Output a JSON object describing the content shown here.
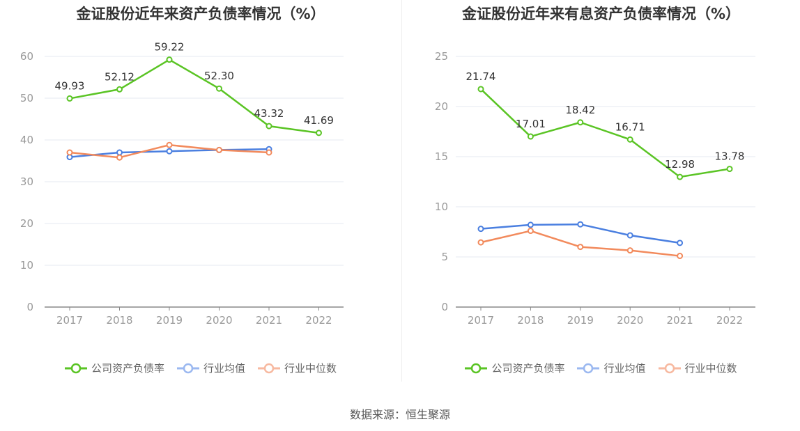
{
  "source_text": "数据来源：恒生聚源",
  "colors": {
    "company": "#5ac424",
    "industry_avg": "#4a7fe0",
    "industry_median": "#f28a5c",
    "grid": "#e6e8f2",
    "axis": "#888888"
  },
  "chart_data": [
    {
      "type": "line",
      "title": "金证股份近年来资产负债率情况（%）",
      "categories": [
        "2017",
        "2018",
        "2019",
        "2020",
        "2021",
        "2022"
      ],
      "ylim": [
        0,
        60
      ],
      "yticks": [
        0,
        10,
        20,
        30,
        40,
        50,
        60
      ],
      "grid": true,
      "legend_position": "bottom",
      "series": [
        {
          "name": "公司资产负债率",
          "color_key": "company",
          "values": [
            49.93,
            52.12,
            59.22,
            52.3,
            43.32,
            41.69
          ],
          "labels": [
            "49.93",
            "52.12",
            "59.22",
            "52.30",
            "43.32",
            "41.69"
          ]
        },
        {
          "name": "行业均值",
          "color_key": "industry_avg",
          "values": [
            35.9,
            37.0,
            37.3,
            37.6,
            37.8,
            null
          ]
        },
        {
          "name": "行业中位数",
          "color_key": "industry_median",
          "values": [
            37.0,
            35.8,
            38.8,
            37.6,
            37.0,
            null
          ]
        }
      ]
    },
    {
      "type": "line",
      "title": "金证股份近年来有息资产负债率情况（%）",
      "categories": [
        "2017",
        "2018",
        "2019",
        "2020",
        "2021",
        "2022"
      ],
      "ylim": [
        0,
        25
      ],
      "yticks": [
        0,
        5,
        10,
        15,
        20,
        25
      ],
      "grid": true,
      "legend_position": "bottom",
      "series": [
        {
          "name": "公司资产负债率",
          "color_key": "company",
          "values": [
            21.74,
            17.01,
            18.42,
            16.71,
            12.98,
            13.78
          ],
          "labels": [
            "21.74",
            "17.01",
            "18.42",
            "16.71",
            "12.98",
            "13.78"
          ]
        },
        {
          "name": "行业均值",
          "color_key": "industry_avg",
          "values": [
            7.8,
            8.2,
            8.25,
            7.15,
            6.4,
            null
          ]
        },
        {
          "name": "行业中位数",
          "color_key": "industry_median",
          "values": [
            6.45,
            7.6,
            6.0,
            5.65,
            5.1,
            null
          ]
        }
      ]
    }
  ]
}
